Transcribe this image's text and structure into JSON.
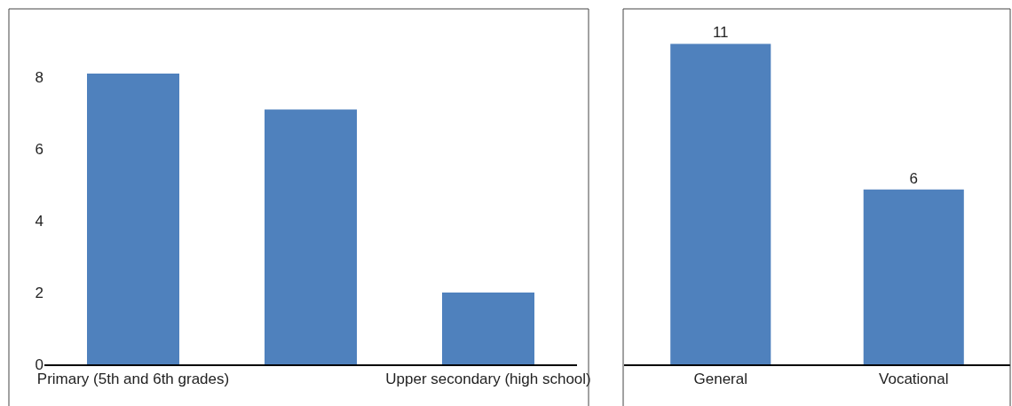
{
  "chart_data": [
    {
      "type": "bar",
      "categories": [
        "Primary (5th and 6th grades)",
        null,
        "Upper secondary (high school)"
      ],
      "values": [
        8.1,
        7.1,
        2.0
      ],
      "color": "#4f81bd",
      "ylim": [
        0,
        9.9
      ],
      "yticks": [
        0,
        2,
        4,
        6,
        8
      ]
    },
    {
      "type": "bar",
      "categories": [
        "General",
        "Vocational"
      ],
      "values": [
        11,
        6
      ],
      "color": "#4f81bd",
      "ylim": [
        0,
        12.2
      ],
      "tick_labels": "x",
      "data_labels": true
    }
  ]
}
